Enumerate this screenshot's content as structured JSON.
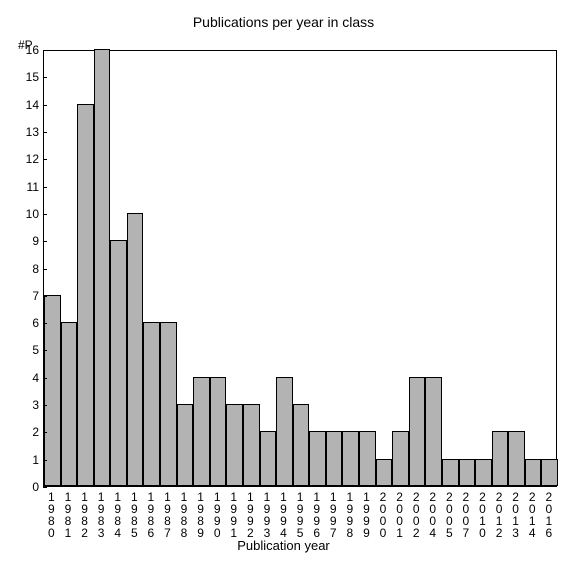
{
  "chart": {
    "type": "bar",
    "title": "Publications per year in class",
    "y_axis_label": "#P",
    "x_axis_title": "Publication year",
    "background_color": "#ffffff",
    "bar_color": "#b3b3b3",
    "bar_border_color": "#000000",
    "axis_color": "#000000",
    "text_color": "#000000",
    "title_fontsize": 14,
    "tick_fontsize": 12,
    "axis_title_fontsize": 13,
    "ylim": [
      0,
      16
    ],
    "ytick_step": 1,
    "bar_width_ratio": 1.0,
    "categories": [
      "1980",
      "1981",
      "1982",
      "1983",
      "1984",
      "1985",
      "1986",
      "1987",
      "1988",
      "1989",
      "1990",
      "1991",
      "1992",
      "1993",
      "1994",
      "1995",
      "1996",
      "1997",
      "1998",
      "1999",
      "2000",
      "2001",
      "2002",
      "2004",
      "2005",
      "2007",
      "2010",
      "2012",
      "2013",
      "2014",
      "2016"
    ],
    "values": [
      7,
      6,
      14,
      16,
      9,
      10,
      6,
      6,
      3,
      4,
      4,
      3,
      3,
      2,
      4,
      3,
      2,
      2,
      2,
      2,
      1,
      2,
      4,
      4,
      1,
      1,
      1,
      2,
      2,
      1,
      1
    ]
  }
}
